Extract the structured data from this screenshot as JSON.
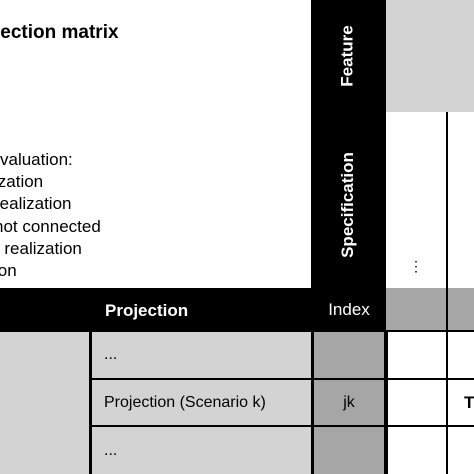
{
  "legend": {
    "title": "rojection matrix",
    "lines": [
      "valuation:",
      "ization",
      "realization",
      "not connected",
      "r realization",
      "ion"
    ]
  },
  "headers": {
    "feature": "Feature",
    "specification": "Specification",
    "projection": "Projection",
    "index": "Index",
    "vertical_ellipsis": "⋮"
  },
  "rows": [
    {
      "label": "...",
      "index": ""
    },
    {
      "label": "Projection (Scenario k)",
      "index": "jk",
      "right_partial": "T"
    },
    {
      "label": "...",
      "index": ""
    }
  ],
  "colors": {
    "black": "#000000",
    "light_gray": "#d3d3d3",
    "medium_gray": "#a6a6a6",
    "white": "#ffffff"
  }
}
